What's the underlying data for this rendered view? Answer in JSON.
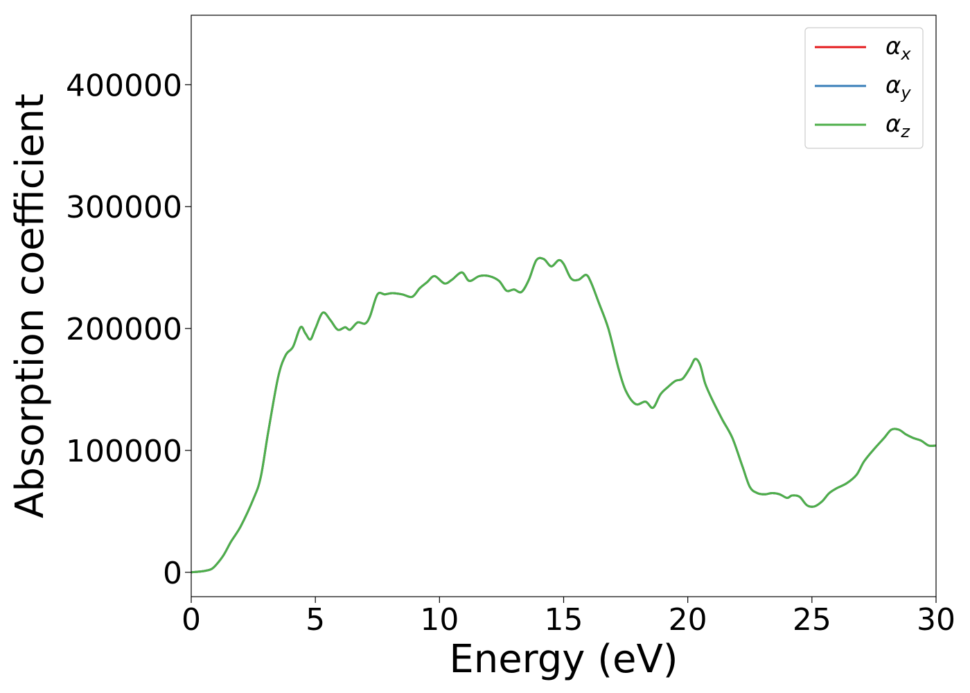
{
  "chart_data": {
    "type": "line",
    "title": "",
    "xlabel": "Energy (eV)",
    "ylabel": "Absorption coefficient",
    "xlim": [
      0,
      30
    ],
    "ylim": [
      -20000,
      457000
    ],
    "xticks": [
      0,
      5,
      10,
      15,
      20,
      25,
      30
    ],
    "yticks": [
      0,
      100000,
      200000,
      300000,
      400000
    ],
    "grid": false,
    "legend_position": "top-right",
    "series": [
      {
        "name": "α",
        "subscript": "x",
        "color": "#e41a1c",
        "x": [
          0,
          0.5,
          0.8,
          1.0,
          1.3,
          1.6,
          2.0,
          2.5,
          2.8,
          3.1,
          3.5,
          3.8,
          4.1,
          4.4,
          4.6,
          4.8,
          5.0,
          5.3,
          5.6,
          5.9,
          6.2,
          6.4,
          6.7,
          7.0,
          7.2,
          7.5,
          7.8,
          8.1,
          8.5,
          8.9,
          9.2,
          9.5,
          9.8,
          10.2,
          10.5,
          10.9,
          11.2,
          11.6,
          12.0,
          12.4,
          12.7,
          13.0,
          13.3,
          13.6,
          13.9,
          14.2,
          14.5,
          14.8,
          15.0,
          15.3,
          15.6,
          15.9,
          16.1,
          16.4,
          16.8,
          17.2,
          17.5,
          17.9,
          18.3,
          18.6,
          18.9,
          19.2,
          19.5,
          19.8,
          20.1,
          20.3,
          20.5,
          20.7,
          21.0,
          21.4,
          21.8,
          22.2,
          22.5,
          22.8,
          23.1,
          23.4,
          23.7,
          24.0,
          24.2,
          24.5,
          24.8,
          25.1,
          25.4,
          25.7,
          26.0,
          26.4,
          26.8,
          27.1,
          27.5,
          27.9,
          28.2,
          28.5,
          28.8,
          29.1,
          29.4,
          29.7,
          30.0
        ],
        "y": [
          0,
          1000,
          2500,
          6000,
          14000,
          25000,
          38000,
          60000,
          78000,
          115000,
          160000,
          178000,
          185000,
          201000,
          196000,
          191000,
          200000,
          213000,
          207000,
          199000,
          201000,
          199000,
          205000,
          204000,
          210000,
          228000,
          228000,
          229000,
          228000,
          226000,
          233000,
          238000,
          243000,
          237000,
          240000,
          246000,
          239000,
          243000,
          243000,
          239000,
          231000,
          232000,
          230000,
          240000,
          256000,
          257000,
          251000,
          256000,
          253000,
          241000,
          240000,
          244000,
          238000,
          222000,
          200000,
          168000,
          149000,
          138000,
          140000,
          135000,
          146000,
          152000,
          157000,
          159000,
          168000,
          175000,
          170000,
          155000,
          141000,
          125000,
          110000,
          87000,
          70000,
          65000,
          64000,
          65000,
          64000,
          61000,
          63000,
          62000,
          55000,
          54000,
          58000,
          65000,
          69000,
          73000,
          80000,
          91000,
          101000,
          110000,
          117000,
          117000,
          113000,
          110000,
          108000,
          104000,
          104000
        ]
      },
      {
        "name": "α",
        "subscript": "y",
        "color": "#377eb8",
        "x": [
          0,
          0.5,
          0.8,
          1.0,
          1.3,
          1.6,
          2.0,
          2.5,
          2.8,
          3.1,
          3.5,
          3.8,
          4.1,
          4.4,
          4.6,
          4.8,
          5.0,
          5.3,
          5.6,
          5.9,
          6.2,
          6.4,
          6.7,
          7.0,
          7.2,
          7.5,
          7.8,
          8.1,
          8.5,
          8.9,
          9.2,
          9.5,
          9.8,
          10.2,
          10.5,
          10.9,
          11.2,
          11.6,
          12.0,
          12.4,
          12.7,
          13.0,
          13.3,
          13.6,
          13.9,
          14.2,
          14.5,
          14.8,
          15.0,
          15.3,
          15.6,
          15.9,
          16.1,
          16.4,
          16.8,
          17.2,
          17.5,
          17.9,
          18.3,
          18.6,
          18.9,
          19.2,
          19.5,
          19.8,
          20.1,
          20.3,
          20.5,
          20.7,
          21.0,
          21.4,
          21.8,
          22.2,
          22.5,
          22.8,
          23.1,
          23.4,
          23.7,
          24.0,
          24.2,
          24.5,
          24.8,
          25.1,
          25.4,
          25.7,
          26.0,
          26.4,
          26.8,
          27.1,
          27.5,
          27.9,
          28.2,
          28.5,
          28.8,
          29.1,
          29.4,
          29.7,
          30.0
        ],
        "y": [
          0,
          1000,
          2500,
          6000,
          14000,
          25000,
          38000,
          60000,
          78000,
          115000,
          160000,
          178000,
          185000,
          201000,
          196000,
          191000,
          200000,
          213000,
          207000,
          199000,
          201000,
          199000,
          205000,
          204000,
          210000,
          228000,
          228000,
          229000,
          228000,
          226000,
          233000,
          238000,
          243000,
          237000,
          240000,
          246000,
          239000,
          243000,
          243000,
          239000,
          231000,
          232000,
          230000,
          240000,
          256000,
          257000,
          251000,
          256000,
          253000,
          241000,
          240000,
          244000,
          238000,
          222000,
          200000,
          168000,
          149000,
          138000,
          140000,
          135000,
          146000,
          152000,
          157000,
          159000,
          168000,
          175000,
          170000,
          155000,
          141000,
          125000,
          110000,
          87000,
          70000,
          65000,
          64000,
          65000,
          64000,
          61000,
          63000,
          62000,
          55000,
          54000,
          58000,
          65000,
          69000,
          73000,
          80000,
          91000,
          101000,
          110000,
          117000,
          117000,
          113000,
          110000,
          108000,
          104000,
          104000
        ]
      },
      {
        "name": "α",
        "subscript": "z",
        "color": "#4daf4a",
        "x": [
          0,
          0.5,
          0.8,
          1.0,
          1.3,
          1.6,
          2.0,
          2.5,
          2.8,
          3.1,
          3.5,
          3.8,
          4.1,
          4.4,
          4.6,
          4.8,
          5.0,
          5.3,
          5.6,
          5.9,
          6.2,
          6.4,
          6.7,
          7.0,
          7.2,
          7.5,
          7.8,
          8.1,
          8.5,
          8.9,
          9.2,
          9.5,
          9.8,
          10.2,
          10.5,
          10.9,
          11.2,
          11.6,
          12.0,
          12.4,
          12.7,
          13.0,
          13.3,
          13.6,
          13.9,
          14.2,
          14.5,
          14.8,
          15.0,
          15.3,
          15.6,
          15.9,
          16.1,
          16.4,
          16.8,
          17.2,
          17.5,
          17.9,
          18.3,
          18.6,
          18.9,
          19.2,
          19.5,
          19.8,
          20.1,
          20.3,
          20.5,
          20.7,
          21.0,
          21.4,
          21.8,
          22.2,
          22.5,
          22.8,
          23.1,
          23.4,
          23.7,
          24.0,
          24.2,
          24.5,
          24.8,
          25.1,
          25.4,
          25.7,
          26.0,
          26.4,
          26.8,
          27.1,
          27.5,
          27.9,
          28.2,
          28.5,
          28.8,
          29.1,
          29.4,
          29.7,
          30.0
        ],
        "y": [
          0,
          1000,
          2500,
          6000,
          14000,
          25000,
          38000,
          60000,
          78000,
          115000,
          160000,
          178000,
          185000,
          201000,
          196000,
          191000,
          200000,
          213000,
          207000,
          199000,
          201000,
          199000,
          205000,
          204000,
          210000,
          228000,
          228000,
          229000,
          228000,
          226000,
          233000,
          238000,
          243000,
          237000,
          240000,
          246000,
          239000,
          243000,
          243000,
          239000,
          231000,
          232000,
          230000,
          240000,
          256000,
          257000,
          251000,
          256000,
          253000,
          241000,
          240000,
          244000,
          238000,
          222000,
          200000,
          168000,
          149000,
          138000,
          140000,
          135000,
          146000,
          152000,
          157000,
          159000,
          168000,
          175000,
          170000,
          155000,
          141000,
          125000,
          110000,
          87000,
          70000,
          65000,
          64000,
          65000,
          64000,
          61000,
          63000,
          62000,
          55000,
          54000,
          58000,
          65000,
          69000,
          73000,
          80000,
          91000,
          101000,
          110000,
          117000,
          117000,
          113000,
          110000,
          108000,
          104000,
          104000
        ]
      }
    ]
  }
}
